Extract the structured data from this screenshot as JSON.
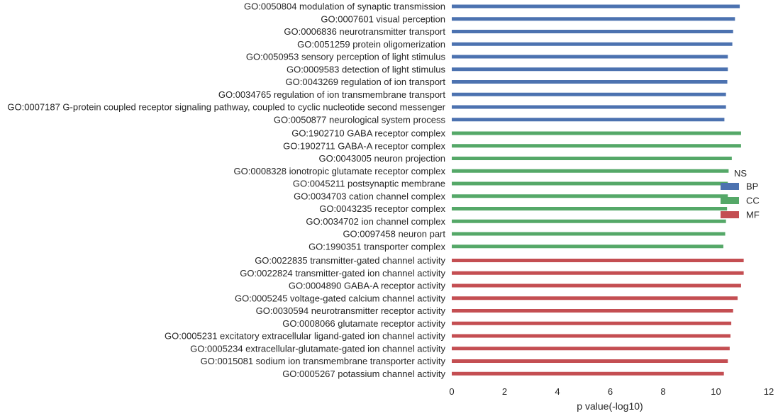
{
  "colors": {
    "BP": "#4c72b0",
    "CC": "#55a868",
    "MF": "#c44e52",
    "text": "#262626"
  },
  "chart_data": {
    "type": "bar",
    "orientation": "horizontal",
    "xlabel": "p value(-log10)",
    "xlim": [
      0,
      12
    ],
    "xticks": [
      "0",
      "2",
      "4",
      "6",
      "8",
      "10",
      "12"
    ],
    "grid": false,
    "legend": {
      "title": "NS",
      "entries": [
        "BP",
        "CC",
        "MF"
      ],
      "placement": "center-right"
    },
    "categories": [
      "GO:0050804 modulation of synaptic transmission",
      "GO:0007601 visual perception",
      "GO:0006836 neurotransmitter transport",
      "GO:0051259 protein oligomerization",
      "GO:0050953 sensory perception of light stimulus",
      "GO:0009583 detection of light stimulus",
      "GO:0043269 regulation of ion transport",
      "GO:0034765 regulation of ion transmembrane transport",
      "GO:0007187 G-protein coupled receptor signaling pathway, coupled to cyclic nucleotide second messenger",
      "GO:0050877 neurological system process",
      "GO:1902710 GABA receptor complex",
      "GO:1902711 GABA-A receptor complex",
      "GO:0043005 neuron projection",
      "GO:0008328 ionotropic glutamate receptor complex",
      "GO:0045211 postsynaptic membrane",
      "GO:0034703 cation channel complex",
      "GO:0043235 receptor complex",
      "GO:0034702 ion channel complex",
      "GO:0097458 neuron part",
      "GO:1990351 transporter complex",
      "GO:0022835 transmitter-gated channel activity",
      "GO:0022824 transmitter-gated ion channel activity",
      "GO:0004890 GABA-A receptor activity",
      "GO:0005245 voltage-gated calcium channel activity",
      "GO:0030594 neurotransmitter receptor activity",
      "GO:0008066 glutamate receptor activity",
      "GO:0005231 excitatory extracellular ligand-gated ion channel activity",
      "GO:0005234 extracellular-glutamate-gated ion channel activity",
      "GO:0015081 sodium ion transmembrane transporter activity",
      "GO:0005267 potassium channel activity"
    ],
    "series": [
      {
        "name": "BP",
        "values": [
          10.9,
          10.72,
          10.65,
          10.62,
          10.45,
          10.45,
          10.43,
          10.38,
          10.38,
          10.32,
          null,
          null,
          null,
          null,
          null,
          null,
          null,
          null,
          null,
          null,
          null,
          null,
          null,
          null,
          null,
          null,
          null,
          null,
          null,
          null
        ]
      },
      {
        "name": "CC",
        "values": [
          null,
          null,
          null,
          null,
          null,
          null,
          null,
          null,
          null,
          null,
          10.95,
          10.95,
          10.6,
          10.48,
          10.45,
          10.45,
          10.42,
          10.38,
          10.35,
          10.28,
          null,
          null,
          null,
          null,
          null,
          null,
          null,
          null,
          null,
          null
        ]
      },
      {
        "name": "MF",
        "values": [
          null,
          null,
          null,
          null,
          null,
          null,
          null,
          null,
          null,
          null,
          null,
          null,
          null,
          null,
          null,
          null,
          null,
          null,
          null,
          null,
          11.05,
          11.05,
          10.95,
          10.82,
          10.65,
          10.58,
          10.55,
          10.52,
          10.45,
          10.3
        ]
      }
    ]
  }
}
